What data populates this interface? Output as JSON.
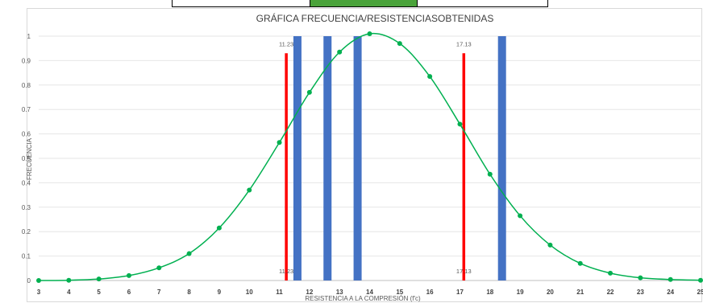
{
  "chart_data": {
    "type": "line",
    "title": "GRÁFICA FRECUENCIA/RESISTENCIASOBTENIDAS",
    "xlabel": "RESISTENCIA A LA COMPRESIÓN (f'c)",
    "ylabel": "FRECUENCIA",
    "xlim": [
      3,
      25
    ],
    "ylim": [
      0,
      1
    ],
    "x_ticks": [
      "3",
      "4",
      "5",
      "6",
      "7",
      "8",
      "9",
      "10",
      "11",
      "12",
      "13",
      "14",
      "15",
      "16",
      "17",
      "18",
      "19",
      "20",
      "21",
      "22",
      "23",
      "24",
      "25"
    ],
    "y_ticks": [
      "0",
      "0.1",
      "0.2",
      "0.3",
      "0.4",
      "0.5",
      "0.6",
      "0.7",
      "0.8",
      "0.9",
      "1"
    ],
    "grid": true,
    "curve": {
      "color": "#00b050",
      "points": [
        {
          "x": 3,
          "y": 0.0
        },
        {
          "x": 4,
          "y": 0.001
        },
        {
          "x": 5,
          "y": 0.006
        },
        {
          "x": 6,
          "y": 0.02
        },
        {
          "x": 7,
          "y": 0.052
        },
        {
          "x": 8,
          "y": 0.11
        },
        {
          "x": 9,
          "y": 0.215
        },
        {
          "x": 10,
          "y": 0.37
        },
        {
          "x": 11,
          "y": 0.565
        },
        {
          "x": 12,
          "y": 0.77
        },
        {
          "x": 13,
          "y": 0.935
        },
        {
          "x": 14,
          "y": 1.01
        },
        {
          "x": 15,
          "y": 0.97
        },
        {
          "x": 16,
          "y": 0.835
        },
        {
          "x": 17,
          "y": 0.64
        },
        {
          "x": 18,
          "y": 0.435
        },
        {
          "x": 19,
          "y": 0.265
        },
        {
          "x": 20,
          "y": 0.145
        },
        {
          "x": 21,
          "y": 0.07
        },
        {
          "x": 22,
          "y": 0.03
        },
        {
          "x": 23,
          "y": 0.011
        },
        {
          "x": 24,
          "y": 0.004
        },
        {
          "x": 25,
          "y": 0.001
        }
      ]
    },
    "limit_lines": {
      "color": "#ff0000",
      "lines": [
        {
          "x": 11.23,
          "top": 0.93,
          "label_top": "11.23",
          "label_bottom": "11.23"
        },
        {
          "x": 17.13,
          "top": 0.93,
          "label_top": "17.13",
          "label_bottom": "17.13"
        }
      ]
    },
    "result_bars": {
      "color": "#4472c4",
      "x": [
        11.6,
        12.6,
        13.6,
        18.4
      ],
      "height": 1
    },
    "top_box_colors": [
      "#ffffff",
      "#4aa33a",
      "#ffffff"
    ]
  }
}
